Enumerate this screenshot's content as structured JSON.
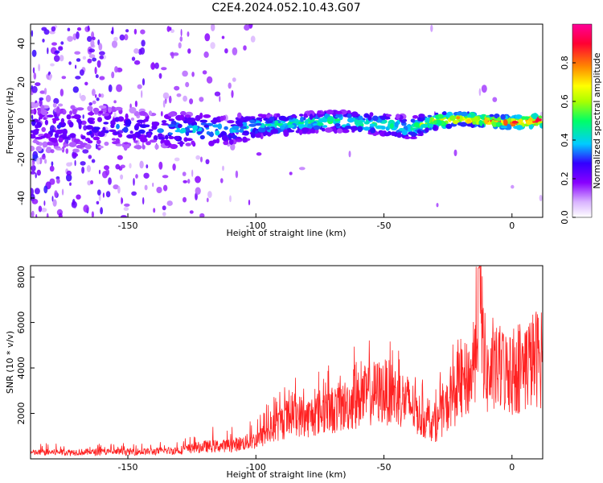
{
  "title": "C2E4.2024.052.10.43.G07",
  "chart_data": [
    {
      "type": "heatmap",
      "xlabel": "Height of straight line (km)",
      "ylabel": "Frequency (Hz)",
      "xlim": [
        -188,
        12
      ],
      "ylim": [
        -50,
        50
      ],
      "xticks": [
        -150,
        -100,
        -50,
        0
      ],
      "xtick_labels": [
        "-150",
        "-100",
        "-50",
        "0"
      ],
      "yticks": [
        -40,
        -20,
        0,
        20,
        40
      ],
      "ytick_labels": [
        "-40",
        "-20",
        "0",
        "20",
        "40"
      ],
      "colorbar": {
        "label": "Normalized spectral amplitude",
        "range": [
          0,
          1
        ],
        "ticks": [
          0.0,
          0.2,
          0.4,
          0.6,
          0.8
        ],
        "tick_labels": [
          "0.0",
          "0.2",
          "0.4",
          "0.6",
          "0.8"
        ],
        "colors": [
          "#ffffff",
          "#d9b3ff",
          "#8800ff",
          "#3300ff",
          "#00ccff",
          "#00ff66",
          "#aaff00",
          "#ffff00",
          "#ff8800",
          "#ff0033",
          "#ff0099"
        ]
      },
      "band_profile": [
        {
          "height": -185,
          "center": -3,
          "amplitude": 0.28,
          "width": 12
        },
        {
          "height": -170,
          "center": -4,
          "amplitude": 0.3,
          "width": 12
        },
        {
          "height": -155,
          "center": -3,
          "amplitude": 0.32,
          "width": 10
        },
        {
          "height": -140,
          "center": -5,
          "amplitude": 0.3,
          "width": 10
        },
        {
          "height": -130,
          "center": -5,
          "amplitude": 0.4,
          "width": 9
        },
        {
          "height": -120,
          "center": -5,
          "amplitude": 0.42,
          "width": 8
        },
        {
          "height": -110,
          "center": -5,
          "amplitude": 0.4,
          "width": 8
        },
        {
          "height": -100,
          "center": -3,
          "amplitude": 0.45,
          "width": 6
        },
        {
          "height": -90,
          "center": -2,
          "amplitude": 0.5,
          "width": 5
        },
        {
          "height": -80,
          "center": -1,
          "amplitude": 0.52,
          "width": 5
        },
        {
          "height": -70,
          "center": 0,
          "amplitude": 0.52,
          "width": 5
        },
        {
          "height": -60,
          "center": -1,
          "amplitude": 0.55,
          "width": 5
        },
        {
          "height": -50,
          "center": -2,
          "amplitude": 0.55,
          "width": 5
        },
        {
          "height": -40,
          "center": -4,
          "amplitude": 0.45,
          "width": 6
        },
        {
          "height": -30,
          "center": 0,
          "amplitude": 0.75,
          "width": 4
        },
        {
          "height": -20,
          "center": 1,
          "amplitude": 0.85,
          "width": 3
        },
        {
          "height": -10,
          "center": 0,
          "amplitude": 0.9,
          "width": 3
        },
        {
          "height": 0,
          "center": -1,
          "amplitude": 0.95,
          "width": 3
        },
        {
          "height": 10,
          "center": 0,
          "amplitude": 0.95,
          "width": 3
        }
      ]
    },
    {
      "type": "line",
      "xlabel": "Height of straight line (km)",
      "ylabel": "SNR (10 * v/v)",
      "xlim": [
        -188,
        12
      ],
      "ylim": [
        0,
        8500
      ],
      "xticks": [
        -150,
        -100,
        -50,
        0
      ],
      "xtick_labels": [
        "-150",
        "-100",
        "-50",
        "0"
      ],
      "yticks": [
        2000,
        4000,
        6000,
        8000
      ],
      "ytick_labels": [
        "2000",
        "4000",
        "6000",
        "8000"
      ],
      "color": "#ff2222",
      "series": [
        {
          "x": [
            -188,
            -180,
            -170,
            -160,
            -150,
            -140,
            -130,
            -120,
            -110,
            -100,
            -95,
            -90,
            -85,
            -80,
            -75,
            -70,
            -65,
            -60,
            -55,
            -50,
            -45,
            -40,
            -35,
            -30,
            -25,
            -20,
            -15,
            -13,
            -10,
            -5,
            0,
            5,
            10,
            12
          ],
          "y": [
            300,
            320,
            330,
            330,
            340,
            360,
            420,
            600,
            650,
            900,
            1300,
            1800,
            2200,
            2000,
            2300,
            2400,
            2600,
            2900,
            3200,
            3300,
            3100,
            2700,
            2000,
            1600,
            2600,
            3600,
            4200,
            8400,
            4000,
            4400,
            4100,
            4500,
            5000,
            4800
          ],
          "peak": [
            700,
            700,
            700,
            700,
            700,
            700,
            900,
            1400,
            1500,
            2000,
            2600,
            3200,
            3800,
            3600,
            4000,
            4200,
            4600,
            5200,
            5600,
            6100,
            5000,
            4200,
            3500,
            3200,
            4800,
            6200,
            7000,
            8400,
            6500,
            6000,
            5800,
            6200,
            6300,
            6000
          ]
        }
      ]
    }
  ]
}
